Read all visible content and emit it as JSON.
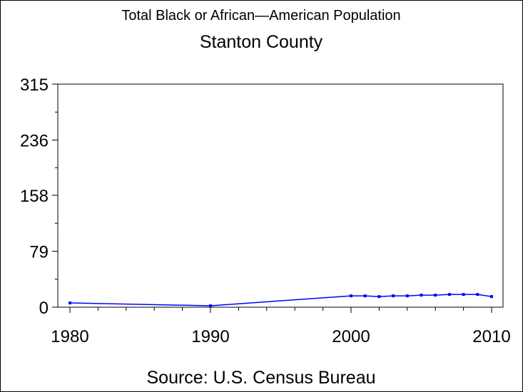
{
  "chart_data": {
    "type": "line",
    "title": "Total Black or African—American Population",
    "subtitle": "Stanton County",
    "source": "Source: U.S. Census Bureau",
    "xlabel": "",
    "ylabel": "",
    "xlim": [
      1980,
      2010
    ],
    "ylim": [
      0,
      315
    ],
    "x_ticks": [
      "1980",
      "1990",
      "2000",
      "2010"
    ],
    "y_ticks": [
      "0",
      "79",
      "158",
      "236",
      "315"
    ],
    "grid": false,
    "series": [
      {
        "color": "#0000ff",
        "x": [
          1980,
          1990,
          2000,
          2001,
          2002,
          2003,
          2004,
          2005,
          2006,
          2007,
          2008,
          2009,
          2010
        ],
        "y": [
          6,
          2,
          16,
          16,
          15,
          16,
          16,
          17,
          17,
          18,
          18,
          18,
          15
        ]
      }
    ]
  }
}
